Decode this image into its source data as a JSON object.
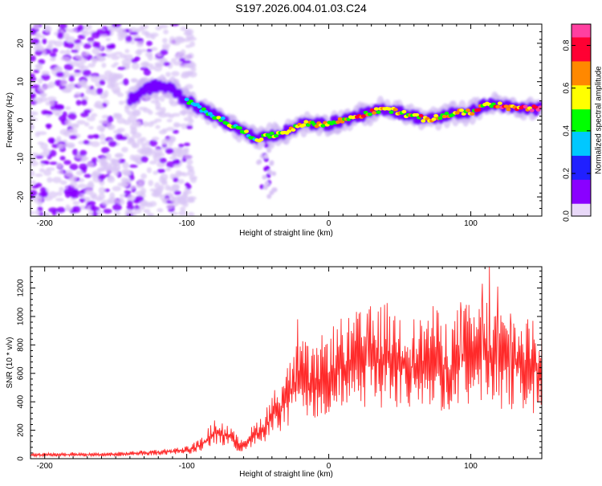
{
  "title": "S197.2026.004.01.03.C24",
  "chart_data": [
    {
      "type": "heatmap",
      "title": "S197.2026.004.01.03.C24",
      "xlabel": "Height of straight line (km)",
      "ylabel": "Frequency (Hz)",
      "xlim": [
        -210,
        150
      ],
      "ylim": [
        -25,
        25
      ],
      "xticks": [
        -200,
        -100,
        0,
        100
      ],
      "yticks": [
        -20,
        -10,
        0,
        10,
        20
      ],
      "colorbar": {
        "label": "Normalized spectral amplitude",
        "range": [
          0,
          0.9
        ],
        "ticks": [
          0.0,
          0.2,
          0.4,
          0.6,
          0.8
        ],
        "tick_labels": [
          "0.0",
          "0.2",
          "0.4",
          "0.6",
          "0.8"
        ],
        "colors": [
          "#e8d8f8",
          "#8a00ff",
          "#2020ff",
          "#00c8ff",
          "#00ff00",
          "#ffff00",
          "#ff8800",
          "#ff0033",
          "#ff40a0"
        ]
      },
      "ridge": {
        "x": [
          -140,
          -130,
          -120,
          -110,
          -100,
          -90,
          -80,
          -70,
          -60,
          -50,
          -40,
          -30,
          -20,
          -10,
          0,
          10,
          20,
          30,
          40,
          50,
          60,
          70,
          80,
          90,
          100,
          110,
          120,
          130,
          140,
          150
        ],
        "y": [
          5,
          8,
          9,
          8,
          5,
          3,
          1,
          -1,
          -3,
          -5,
          -4,
          -3,
          -1,
          -1,
          -1,
          0,
          1,
          2,
          3,
          2,
          1,
          0,
          1,
          2,
          2,
          4,
          4,
          3,
          3,
          3
        ],
        "amplitude": [
          0.3,
          0.35,
          0.35,
          0.3,
          0.4,
          0.45,
          0.5,
          0.5,
          0.5,
          0.5,
          0.55,
          0.55,
          0.6,
          0.6,
          0.6,
          0.65,
          0.65,
          0.7,
          0.7,
          0.7,
          0.7,
          0.7,
          0.7,
          0.7,
          0.7,
          0.75,
          0.8,
          0.85,
          0.9,
          0.9
        ]
      },
      "noise_region_x": [
        -210,
        -95
      ]
    },
    {
      "type": "line",
      "xlabel": "Height of straight line (km)",
      "ylabel": "SNR (10 * v/v)",
      "xlim": [
        -210,
        150
      ],
      "ylim": [
        0,
        1350
      ],
      "xticks": [
        -200,
        -100,
        0,
        100
      ],
      "yticks": [
        0,
        200,
        400,
        600,
        800,
        1000,
        1200
      ],
      "series": [
        {
          "name": "SNR",
          "color": "#ff2a2a",
          "x": [
            -210,
            -200,
            -190,
            -180,
            -170,
            -160,
            -150,
            -140,
            -130,
            -120,
            -110,
            -100,
            -90,
            -85,
            -80,
            -75,
            -70,
            -65,
            -60,
            -55,
            -50,
            -45,
            -40,
            -35,
            -30,
            -25,
            -20,
            -15,
            -10,
            -5,
            0,
            5,
            10,
            15,
            20,
            25,
            30,
            35,
            40,
            45,
            50,
            55,
            60,
            65,
            70,
            75,
            80,
            85,
            90,
            95,
            100,
            105,
            110,
            115,
            120,
            125,
            130,
            135,
            140,
            145,
            150
          ],
          "y": [
            25,
            28,
            26,
            30,
            27,
            29,
            31,
            35,
            40,
            45,
            50,
            60,
            90,
            140,
            180,
            170,
            150,
            110,
            100,
            140,
            180,
            220,
            300,
            350,
            420,
            480,
            560,
            520,
            500,
            560,
            600,
            620,
            650,
            640,
            680,
            660,
            700,
            690,
            720,
            680,
            700,
            660,
            640,
            650,
            680,
            700,
            650,
            620,
            680,
            720,
            700,
            720,
            760,
            690,
            700,
            660,
            680,
            640,
            650,
            620,
            660
          ],
          "peaks": [
            {
              "x": -22,
              "y": 980
            },
            {
              "x": 27,
              "y": 1020
            },
            {
              "x": 43,
              "y": 1000
            },
            {
              "x": 60,
              "y": 980
            },
            {
              "x": 70,
              "y": 970
            },
            {
              "x": 93,
              "y": 1100
            },
            {
              "x": 108,
              "y": 1230
            },
            {
              "x": 113,
              "y": 1350
            },
            {
              "x": 119,
              "y": 1210
            },
            {
              "x": 128,
              "y": 1020
            },
            {
              "x": 140,
              "y": 980
            }
          ]
        }
      ]
    }
  ]
}
